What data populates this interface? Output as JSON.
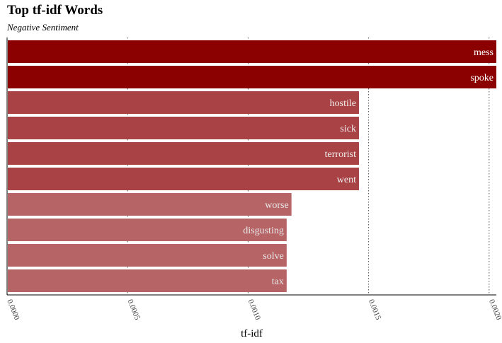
{
  "chart_data": {
    "type": "bar",
    "orientation": "horizontal",
    "title": "Top tf-idf Words",
    "subtitle": "Negative Sentiment",
    "xlabel": "tf-idf",
    "ylabel": "",
    "xlim": [
      0,
      0.00203
    ],
    "ticks": [
      "0.0000",
      "0.0005",
      "0.0010",
      "0.0015",
      "0.0020"
    ],
    "tick_values": [
      0,
      0.0005,
      0.001,
      0.0015,
      0.002
    ],
    "grid": "vertical dotted",
    "categories": [
      "mess",
      "spoke",
      "hostile",
      "sick",
      "terrorist",
      "went",
      "worse",
      "disgusting",
      "solve",
      "tax"
    ],
    "values": [
      0.00203,
      0.00203,
      0.00146,
      0.00146,
      0.00146,
      0.00146,
      0.00118,
      0.00116,
      0.00116,
      0.00116
    ],
    "colors": [
      "#8b0000",
      "#8b0000",
      "#a84244",
      "#a84244",
      "#a84244",
      "#a84244",
      "#b66465",
      "#b66465",
      "#b66465",
      "#b66465"
    ],
    "label_colors": [
      "#ffffff",
      "#ffffff",
      "#f2f2f2",
      "#f2f2f2",
      "#f2f2f2",
      "#f2f2f2",
      "#e8e8e8",
      "#e8e8e8",
      "#e8e8e8",
      "#e8e8e8"
    ]
  }
}
